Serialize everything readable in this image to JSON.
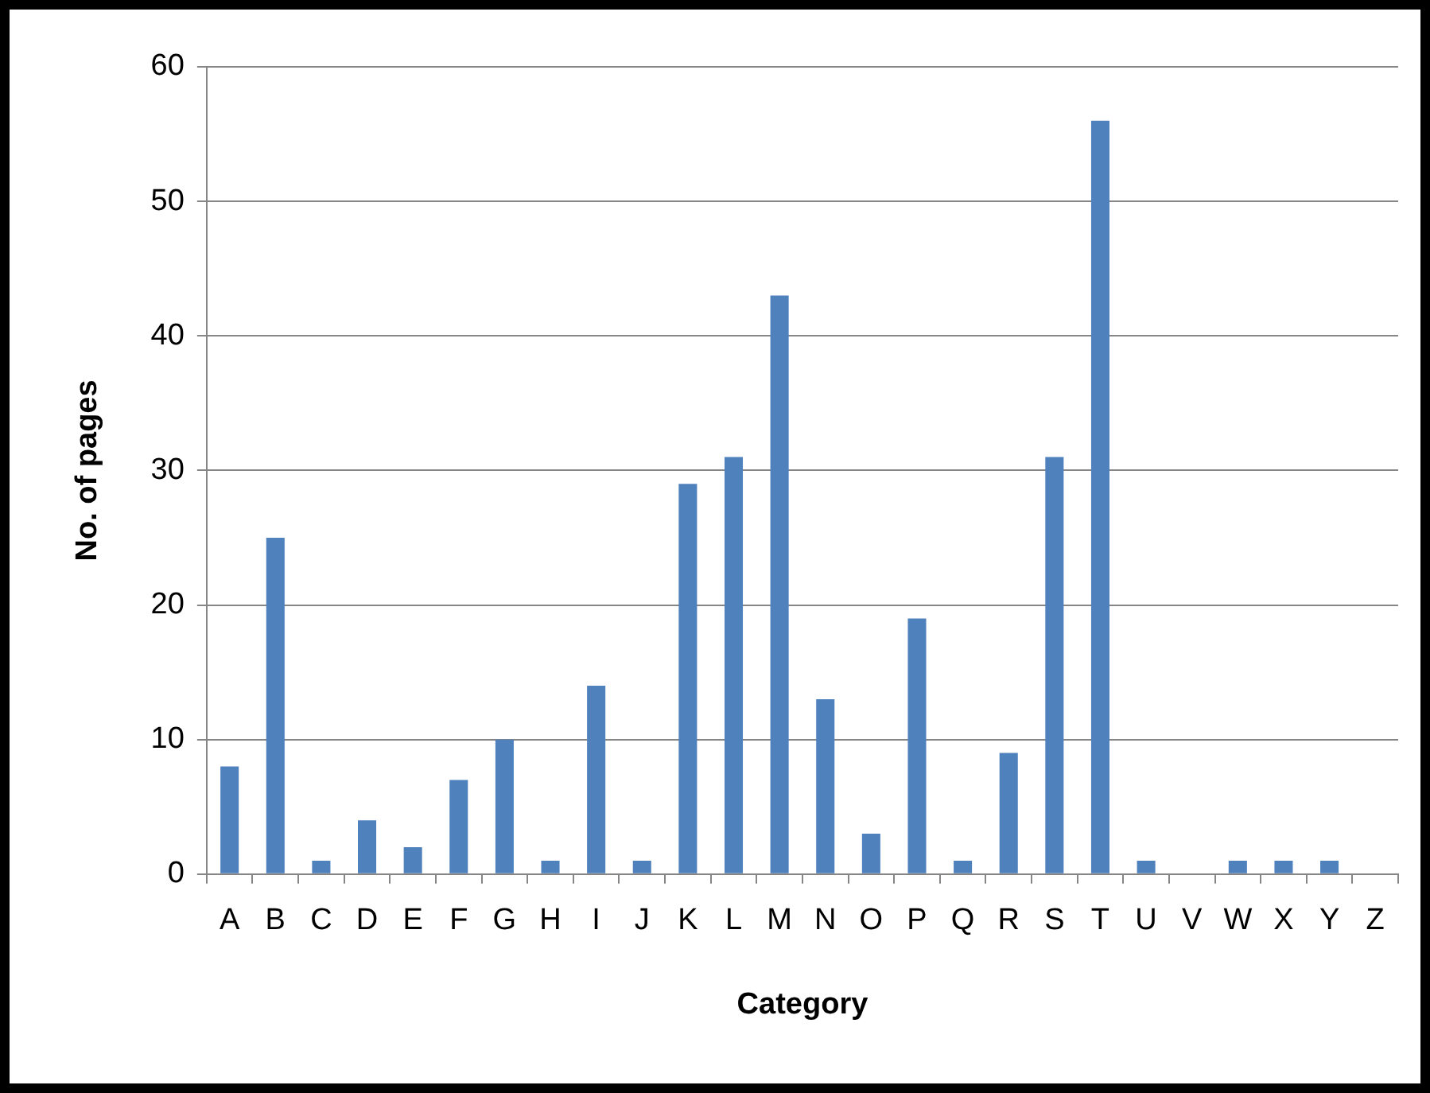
{
  "chart_data": {
    "type": "bar",
    "xlabel": "Category",
    "ylabel": "No. of pages",
    "categories": [
      "A",
      "B",
      "C",
      "D",
      "E",
      "F",
      "G",
      "H",
      "I",
      "J",
      "K",
      "L",
      "M",
      "N",
      "O",
      "P",
      "Q",
      "R",
      "S",
      "T",
      "U",
      "V",
      "W",
      "X",
      "Y",
      "Z"
    ],
    "values": [
      8,
      25,
      1,
      4,
      2,
      7,
      10,
      1,
      14,
      1,
      29,
      31,
      43,
      13,
      3,
      19,
      1,
      9,
      31,
      56,
      1,
      0,
      1,
      1,
      1,
      0
    ],
    "color": "#4f81bd",
    "ylim": [
      0,
      60
    ],
    "yticks": [
      0,
      10,
      20,
      30,
      40,
      50,
      60
    ],
    "grid": "y",
    "legend": false
  }
}
